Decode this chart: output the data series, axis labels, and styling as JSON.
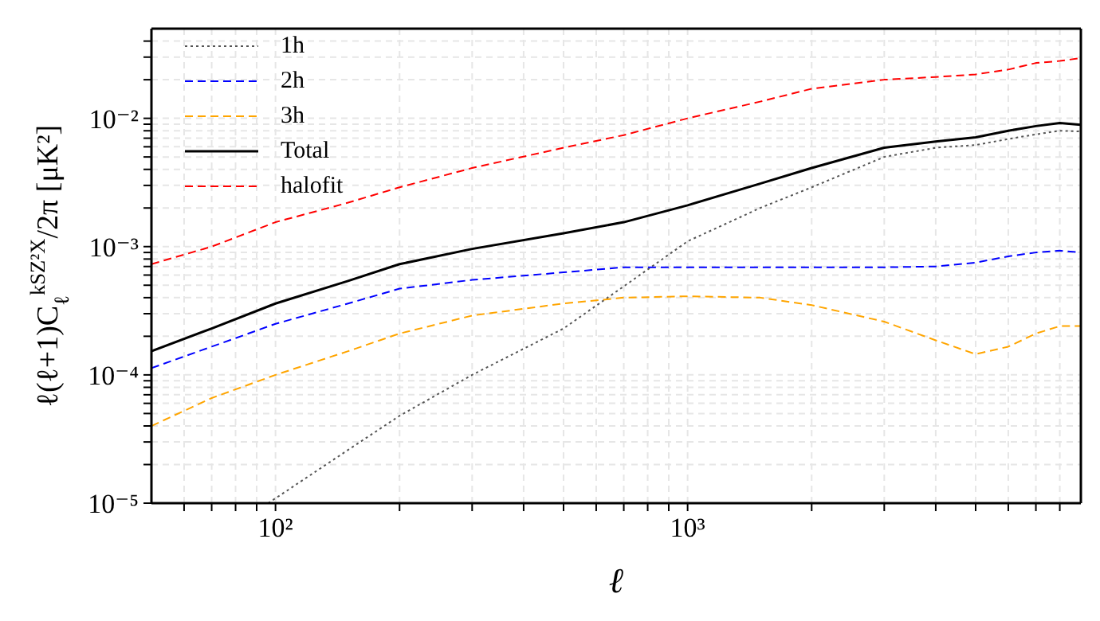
{
  "chart_data": {
    "type": "line",
    "xlabel": "ℓ",
    "ylabel": "ℓ(ℓ+1)C$_{ℓ}$$^{kSZ²X}$/2π  [μK²]",
    "log": "xy",
    "grid": true,
    "legend": "top left",
    "marker": "none",
    "x": [
      50,
      70,
      100,
      150,
      200,
      300,
      500,
      700,
      1000,
      1500,
      2000,
      3000,
      4000,
      5000,
      6000,
      7000,
      8000,
      9000
    ],
    "series": [
      {
        "name": "1h",
        "color": "#555555",
        "line_style": "dotted",
        "x": [
          96,
          150,
          200,
          300,
          500,
          700,
          1000,
          1500,
          2000,
          3000,
          4000,
          5000,
          6000,
          7000,
          8000,
          9000
        ],
        "values": [
          1e-05,
          2.6e-05,
          4.8e-05,
          0.0001,
          0.00023,
          0.00049,
          0.0011,
          0.002,
          0.0029,
          0.005,
          0.0059,
          0.0062,
          0.0069,
          0.0075,
          0.008,
          0.0079
        ]
      },
      {
        "name": "2h",
        "color": "#0000ff",
        "line_style": "dashed",
        "values": [
          0.000113,
          0.000166,
          0.00025,
          0.00036,
          0.00047,
          0.00055,
          0.00063,
          0.00069,
          0.00069,
          0.00069,
          0.00069,
          0.00069,
          0.0007,
          0.00075,
          0.00084,
          0.0009,
          0.00093,
          0.0009
        ]
      },
      {
        "name": "3h",
        "color": "#ffa500",
        "line_style": "dashed",
        "values": [
          4e-05,
          6.6e-05,
          0.0001,
          0.000153,
          0.00021,
          0.00029,
          0.00036,
          0.0004,
          0.00041,
          0.0004,
          0.00035,
          0.00026,
          0.000186,
          0.000145,
          0.000166,
          0.00021,
          0.00024,
          0.00024
        ]
      },
      {
        "name": "Total",
        "color": "#000000",
        "line_style": "solid",
        "values": [
          0.000153,
          0.00023,
          0.00036,
          0.00054,
          0.00073,
          0.00096,
          0.00127,
          0.00155,
          0.0021,
          0.0031,
          0.0041,
          0.0059,
          0.0066,
          0.0071,
          0.008,
          0.0087,
          0.0092,
          0.0089
        ]
      },
      {
        "name": "halofit",
        "color": "#ff0000",
        "line_style": "dashed",
        "values": [
          0.00073,
          0.001,
          0.00155,
          0.0022,
          0.0029,
          0.0041,
          0.0059,
          0.0074,
          0.01,
          0.0135,
          0.017,
          0.02,
          0.021,
          0.022,
          0.024,
          0.027,
          0.028,
          0.0295
        ]
      }
    ],
    "xlim": [
      50,
      9000
    ],
    "ylim": [
      1e-05,
      0.05
    ],
    "xticks": [
      {
        "value": 60,
        "label": null
      },
      {
        "value": 70,
        "label": null
      },
      {
        "value": 80,
        "label": null
      },
      {
        "value": 90,
        "label": null
      },
      {
        "value": 100,
        "label": "10²"
      },
      {
        "value": 200,
        "label": null
      },
      {
        "value": 300,
        "label": null
      },
      {
        "value": 400,
        "label": null
      },
      {
        "value": 500,
        "label": null
      },
      {
        "value": 600,
        "label": null
      },
      {
        "value": 700,
        "label": null
      },
      {
        "value": 800,
        "label": null
      },
      {
        "value": 900,
        "label": null
      },
      {
        "value": 1000,
        "label": "10³"
      },
      {
        "value": 2000,
        "label": null
      },
      {
        "value": 3000,
        "label": null
      },
      {
        "value": 4000,
        "label": null
      },
      {
        "value": 5000,
        "label": null
      },
      {
        "value": 6000,
        "label": null
      },
      {
        "value": 7000,
        "label": null
      },
      {
        "value": 8000,
        "label": null
      }
    ],
    "yticks": [
      {
        "value": 1e-05,
        "label": "10⁻⁵"
      },
      {
        "value": 2e-05,
        "label": null
      },
      {
        "value": 3e-05,
        "label": null
      },
      {
        "value": 4e-05,
        "label": null
      },
      {
        "value": 5e-05,
        "label": null
      },
      {
        "value": 6e-05,
        "label": null
      },
      {
        "value": 7e-05,
        "label": null
      },
      {
        "value": 8e-05,
        "label": null
      },
      {
        "value": 9e-05,
        "label": null
      },
      {
        "value": 0.0001,
        "label": "10⁻⁴"
      },
      {
        "value": 0.0002,
        "label": null
      },
      {
        "value": 0.0003,
        "label": null
      },
      {
        "value": 0.0004,
        "label": null
      },
      {
        "value": 0.0005,
        "label": null
      },
      {
        "value": 0.0006,
        "label": null
      },
      {
        "value": 0.0007,
        "label": null
      },
      {
        "value": 0.0008,
        "label": null
      },
      {
        "value": 0.0009,
        "label": null
      },
      {
        "value": 0.001,
        "label": "10⁻³"
      },
      {
        "value": 0.002,
        "label": null
      },
      {
        "value": 0.003,
        "label": null
      },
      {
        "value": 0.004,
        "label": null
      },
      {
        "value": 0.005,
        "label": null
      },
      {
        "value": 0.006,
        "label": null
      },
      {
        "value": 0.007,
        "label": null
      },
      {
        "value": 0.008,
        "label": null
      },
      {
        "value": 0.009,
        "label": null
      },
      {
        "value": 0.01,
        "label": "10⁻²"
      },
      {
        "value": 0.02,
        "label": null
      },
      {
        "value": 0.03,
        "label": null
      },
      {
        "value": 0.04,
        "label": null
      }
    ]
  }
}
